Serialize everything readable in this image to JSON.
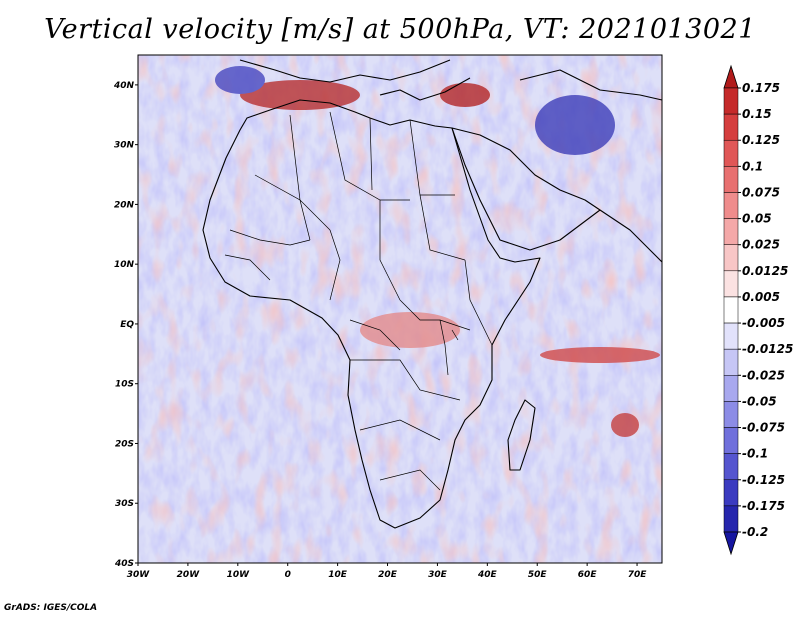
{
  "title": "Vertical velocity [m/s] at 500hPa, VT: 2021013021",
  "credit": "GrADS: IGES/COLA",
  "map": {
    "region": "Africa",
    "lat_labels": [
      "40N",
      "30N",
      "20N",
      "10N",
      "EQ",
      "10S",
      "20S",
      "30S",
      "40S"
    ],
    "lon_labels": [
      "30W",
      "20W",
      "10W",
      "0",
      "10E",
      "20E",
      "30E",
      "40E",
      "50E",
      "60E",
      "70E"
    ],
    "lat_values": [
      40,
      30,
      20,
      10,
      0,
      -10,
      -20,
      -30,
      -40
    ],
    "lon_values": [
      -30,
      -20,
      -10,
      0,
      10,
      20,
      30,
      40,
      50,
      60,
      70
    ],
    "lon_range": [
      -30,
      75
    ],
    "lat_range": [
      -40,
      45
    ],
    "colors": {
      "land_outline": "#000000",
      "field_background": "#c9c9f3",
      "updraft_mid": "#e99a9a",
      "updraft_strong": "#b41e1e"
    }
  },
  "colorbar": {
    "labels": [
      "0.175",
      "0.15",
      "0.125",
      "0.1",
      "0.075",
      "0.05",
      "0.025",
      "0.0125",
      "0.005",
      "-0.005",
      "-0.0125",
      "-0.025",
      "-0.05",
      "-0.075",
      "-0.1",
      "-0.125",
      "-0.175",
      "-0.2"
    ],
    "colors": [
      "#b11b1b",
      "#c52a2a",
      "#d53e3e",
      "#e05757",
      "#e87070",
      "#ef8c8c",
      "#f4a8a8",
      "#f8c6c6",
      "#fbe2e2",
      "#ffffff",
      "#e2e2fb",
      "#c6c6f5",
      "#a8a8ee",
      "#8c8ce6",
      "#7070dc",
      "#5555cf",
      "#3b3bc0",
      "#2626ad",
      "#1616a0"
    ]
  }
}
